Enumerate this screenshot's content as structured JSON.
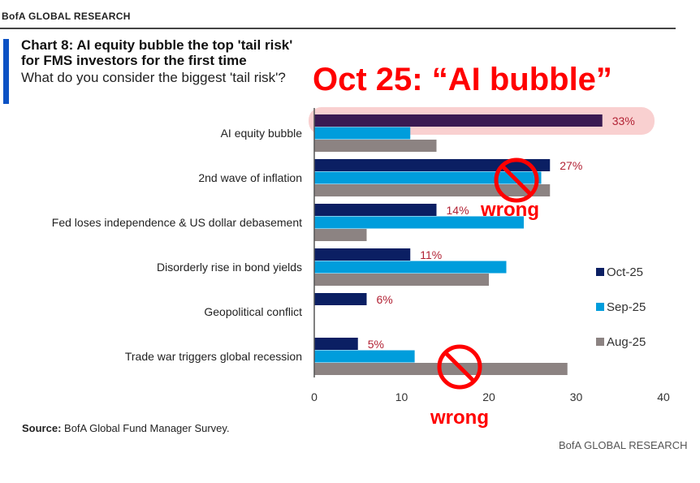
{
  "header": {
    "brand": "BofA GLOBAL RESEARCH"
  },
  "title": "Chart 8: AI equity bubble the top 'tail risk' for FMS investors for the first time",
  "subtitle": "What do you consider the biggest 'tail risk'?",
  "annotation": {
    "headline": "Oct 25: “AI bubble”",
    "wrong_label": "wrong",
    "highlight_color": "#f8c8c8",
    "mark_color": "#ff0000"
  },
  "chart_data": {
    "type": "bar",
    "orientation": "horizontal",
    "categories": [
      "AI equity bubble",
      "2nd wave of inflation",
      "Fed loses independence & US dollar debasement",
      "Disorderly rise in bond yields",
      "Geopolitical conflict",
      "Trade war triggers global recession"
    ],
    "series": [
      {
        "name": "Oct-25",
        "color": "#0b1f63",
        "values": [
          33,
          27,
          14,
          11,
          6,
          5
        ],
        "labels": [
          "33%",
          "27%",
          "14%",
          "11%",
          "6%",
          "5%"
        ]
      },
      {
        "name": "Sep-25",
        "color": "#009ddc",
        "values": [
          11,
          26,
          24,
          22,
          null,
          11.5
        ]
      },
      {
        "name": "Aug-25",
        "color": "#8c8382",
        "values": [
          14,
          27,
          6,
          20,
          null,
          29
        ]
      }
    ],
    "xlim": [
      0,
      40
    ],
    "xticks": [
      "0",
      "10",
      "20",
      "30",
      "40"
    ],
    "legend": "right",
    "grid": false
  },
  "source": {
    "label": "Source:",
    "text": " BofA Global Fund Manager Survey."
  },
  "footer": "BofA GLOBAL RESEARCH"
}
